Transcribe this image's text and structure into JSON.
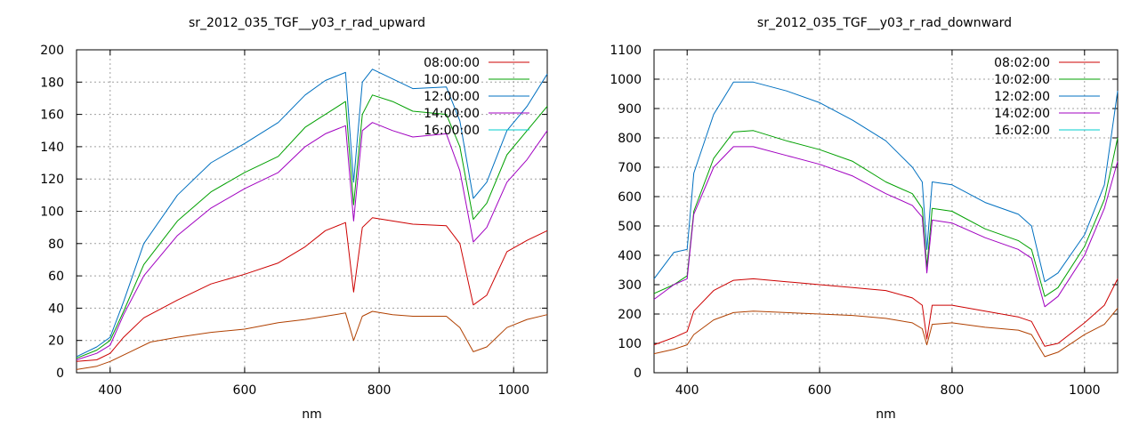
{
  "chart_data": [
    {
      "type": "line",
      "title": "sr_2012_035_TGF__y03_r_rad_upward",
      "xlabel": "nm",
      "ylabel": "",
      "xlim": [
        350,
        1050
      ],
      "ylim": [
        0,
        200
      ],
      "xticks": [
        400,
        600,
        800,
        1000
      ],
      "yticks": [
        0,
        20,
        40,
        60,
        80,
        100,
        120,
        140,
        160,
        180,
        200
      ],
      "grid": true,
      "legend_position": "top-right",
      "series": [
        {
          "name": "08:00:00",
          "color": "#cc0000",
          "points": [
            [
              350,
              7
            ],
            [
              380,
              8
            ],
            [
              400,
              12
            ],
            [
              420,
              22
            ],
            [
              450,
              34
            ],
            [
              500,
              45
            ],
            [
              550,
              55
            ],
            [
              600,
              61
            ],
            [
              650,
              68
            ],
            [
              690,
              78
            ],
            [
              720,
              88
            ],
            [
              750,
              93
            ],
            [
              762,
              50
            ],
            [
              775,
              90
            ],
            [
              790,
              96
            ],
            [
              820,
              94
            ],
            [
              850,
              92
            ],
            [
              900,
              91
            ],
            [
              920,
              80
            ],
            [
              940,
              42
            ],
            [
              960,
              48
            ],
            [
              990,
              75
            ],
            [
              1020,
              82
            ],
            [
              1050,
              88
            ]
          ]
        },
        {
          "name": "",
          "color": "#b04000",
          "points": [
            [
              350,
              2
            ],
            [
              380,
              4
            ],
            [
              400,
              7
            ],
            [
              430,
              13
            ],
            [
              460,
              19
            ],
            [
              500,
              22
            ],
            [
              550,
              25
            ],
            [
              600,
              27
            ],
            [
              650,
              31
            ],
            [
              690,
              33
            ],
            [
              720,
              35
            ],
            [
              750,
              37
            ],
            [
              762,
              20
            ],
            [
              775,
              35
            ],
            [
              790,
              38
            ],
            [
              820,
              36
            ],
            [
              850,
              35
            ],
            [
              900,
              35
            ],
            [
              920,
              28
            ],
            [
              940,
              13
            ],
            [
              960,
              16
            ],
            [
              990,
              28
            ],
            [
              1020,
              33
            ],
            [
              1050,
              36
            ]
          ]
        },
        {
          "name": "10:00:00",
          "color": "#00a000",
          "points": [
            [
              350,
              9
            ],
            [
              380,
              14
            ],
            [
              400,
              20
            ],
            [
              420,
              38
            ],
            [
              450,
              67
            ],
            [
              500,
              94
            ],
            [
              550,
              112
            ],
            [
              600,
              124
            ],
            [
              650,
              134
            ],
            [
              690,
              152
            ],
            [
              720,
              160
            ],
            [
              750,
              168
            ],
            [
              762,
              104
            ],
            [
              775,
              160
            ],
            [
              790,
              172
            ],
            [
              820,
              168
            ],
            [
              850,
              162
            ],
            [
              900,
              160
            ],
            [
              920,
              140
            ],
            [
              940,
              95
            ],
            [
              960,
              105
            ],
            [
              990,
              135
            ],
            [
              1020,
              150
            ],
            [
              1050,
              165
            ]
          ]
        },
        {
          "name": "12:00:00",
          "color": "#0070c0",
          "points": [
            [
              350,
              10
            ],
            [
              380,
              16
            ],
            [
              400,
              22
            ],
            [
              420,
              44
            ],
            [
              450,
              80
            ],
            [
              500,
              110
            ],
            [
              550,
              130
            ],
            [
              600,
              142
            ],
            [
              650,
              155
            ],
            [
              690,
              172
            ],
            [
              720,
              181
            ],
            [
              750,
              186
            ],
            [
              762,
              118
            ],
            [
              775,
              180
            ],
            [
              790,
              188
            ],
            [
              820,
              182
            ],
            [
              850,
              176
            ],
            [
              900,
              177
            ],
            [
              920,
              156
            ],
            [
              940,
              108
            ],
            [
              960,
              118
            ],
            [
              990,
              150
            ],
            [
              1020,
              165
            ],
            [
              1050,
              185
            ]
          ]
        },
        {
          "name": "14:00:00",
          "color": "#a000c0",
          "points": [
            [
              350,
              8
            ],
            [
              380,
              12
            ],
            [
              400,
              17
            ],
            [
              420,
              36
            ],
            [
              450,
              60
            ],
            [
              500,
              85
            ],
            [
              550,
              102
            ],
            [
              600,
              114
            ],
            [
              650,
              124
            ],
            [
              690,
              140
            ],
            [
              720,
              148
            ],
            [
              750,
              153
            ],
            [
              762,
              94
            ],
            [
              775,
              150
            ],
            [
              790,
              155
            ],
            [
              820,
              150
            ],
            [
              850,
              146
            ],
            [
              900,
              148
            ],
            [
              920,
              125
            ],
            [
              940,
              81
            ],
            [
              960,
              90
            ],
            [
              990,
              118
            ],
            [
              1020,
              132
            ],
            [
              1050,
              150
            ]
          ]
        },
        {
          "name": "16:00:00",
          "color": "#00cccc",
          "points": []
        }
      ]
    },
    {
      "type": "line",
      "title": "sr_2012_035_TGF__y03_r_rad_downward",
      "xlabel": "nm",
      "ylabel": "",
      "xlim": [
        350,
        1050
      ],
      "ylim": [
        0,
        1100
      ],
      "xticks": [
        400,
        600,
        800,
        1000
      ],
      "yticks": [
        0,
        100,
        200,
        300,
        400,
        500,
        600,
        700,
        800,
        900,
        1000,
        1100
      ],
      "grid": true,
      "legend_position": "top-right",
      "series": [
        {
          "name": "08:02:00",
          "color": "#cc0000",
          "points": [
            [
              350,
              95
            ],
            [
              380,
              120
            ],
            [
              400,
              140
            ],
            [
              410,
              210
            ],
            [
              440,
              280
            ],
            [
              470,
              315
            ],
            [
              500,
              320
            ],
            [
              550,
              310
            ],
            [
              600,
              300
            ],
            [
              650,
              290
            ],
            [
              700,
              280
            ],
            [
              740,
              255
            ],
            [
              755,
              230
            ],
            [
              762,
              115
            ],
            [
              770,
              230
            ],
            [
              800,
              230
            ],
            [
              850,
              210
            ],
            [
              900,
              190
            ],
            [
              920,
              175
            ],
            [
              940,
              90
            ],
            [
              960,
              100
            ],
            [
              1000,
              170
            ],
            [
              1030,
              230
            ],
            [
              1050,
              320
            ]
          ]
        },
        {
          "name": "",
          "color": "#b04000",
          "points": [
            [
              350,
              65
            ],
            [
              380,
              80
            ],
            [
              400,
              95
            ],
            [
              410,
              130
            ],
            [
              440,
              180
            ],
            [
              470,
              205
            ],
            [
              500,
              210
            ],
            [
              550,
              205
            ],
            [
              600,
              200
            ],
            [
              650,
              195
            ],
            [
              700,
              185
            ],
            [
              740,
              170
            ],
            [
              755,
              150
            ],
            [
              762,
              95
            ],
            [
              770,
              165
            ],
            [
              800,
              170
            ],
            [
              850,
              155
            ],
            [
              900,
              145
            ],
            [
              920,
              130
            ],
            [
              940,
              55
            ],
            [
              960,
              70
            ],
            [
              1000,
              130
            ],
            [
              1030,
              165
            ],
            [
              1050,
              220
            ]
          ]
        },
        {
          "name": "10:02:00",
          "color": "#00a000",
          "points": [
            [
              350,
              270
            ],
            [
              380,
              300
            ],
            [
              400,
              330
            ],
            [
              410,
              550
            ],
            [
              440,
              730
            ],
            [
              470,
              820
            ],
            [
              500,
              825
            ],
            [
              550,
              790
            ],
            [
              600,
              760
            ],
            [
              650,
              720
            ],
            [
              700,
              650
            ],
            [
              740,
              610
            ],
            [
              755,
              560
            ],
            [
              762,
              360
            ],
            [
              770,
              560
            ],
            [
              800,
              550
            ],
            [
              850,
              490
            ],
            [
              900,
              450
            ],
            [
              920,
              420
            ],
            [
              940,
              260
            ],
            [
              960,
              290
            ],
            [
              1000,
              430
            ],
            [
              1030,
              590
            ],
            [
              1050,
              800
            ]
          ]
        },
        {
          "name": "12:02:00",
          "color": "#0070c0",
          "points": [
            [
              350,
              320
            ],
            [
              380,
              410
            ],
            [
              400,
              420
            ],
            [
              410,
              680
            ],
            [
              440,
              880
            ],
            [
              470,
              990
            ],
            [
              500,
              990
            ],
            [
              550,
              960
            ],
            [
              600,
              920
            ],
            [
              650,
              860
            ],
            [
              700,
              790
            ],
            [
              740,
              700
            ],
            [
              755,
              650
            ],
            [
              762,
              420
            ],
            [
              770,
              650
            ],
            [
              800,
              640
            ],
            [
              850,
              580
            ],
            [
              900,
              540
            ],
            [
              920,
              500
            ],
            [
              940,
              310
            ],
            [
              960,
              340
            ],
            [
              1000,
              470
            ],
            [
              1030,
              640
            ],
            [
              1050,
              960
            ]
          ]
        },
        {
          "name": "14:02:00",
          "color": "#a000c0",
          "points": [
            [
              350,
              250
            ],
            [
              380,
              300
            ],
            [
              400,
              320
            ],
            [
              410,
              540
            ],
            [
              440,
              700
            ],
            [
              470,
              770
            ],
            [
              500,
              770
            ],
            [
              550,
              740
            ],
            [
              600,
              710
            ],
            [
              650,
              670
            ],
            [
              700,
              610
            ],
            [
              740,
              570
            ],
            [
              755,
              530
            ],
            [
              762,
              340
            ],
            [
              770,
              520
            ],
            [
              800,
              510
            ],
            [
              850,
              460
            ],
            [
              900,
              420
            ],
            [
              920,
              390
            ],
            [
              940,
              225
            ],
            [
              960,
              260
            ],
            [
              1000,
              400
            ],
            [
              1030,
              560
            ],
            [
              1050,
              720
            ]
          ]
        },
        {
          "name": "16:02:00",
          "color": "#00cccc",
          "points": []
        }
      ]
    }
  ]
}
